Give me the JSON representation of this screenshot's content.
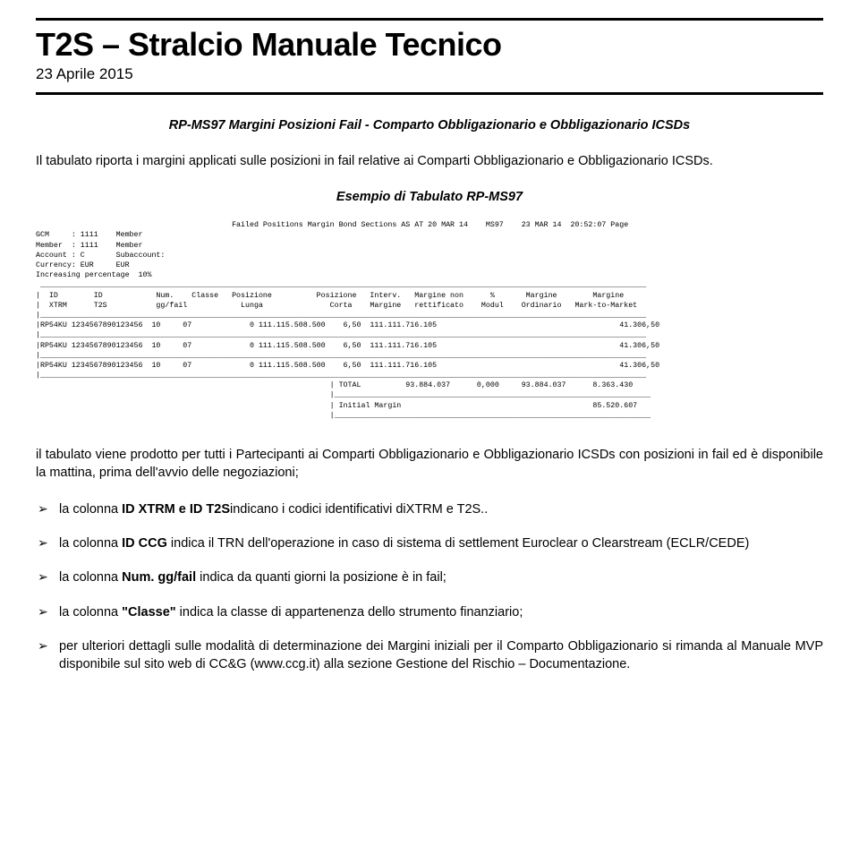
{
  "header": {
    "title": "T2S – Stralcio Manuale Tecnico",
    "date": "23 Aprile 2015"
  },
  "section_title": "RP-MS97 Margini Posizioni Fail - Comparto Obbligazionario e Obbligazionario ICSDs",
  "intro": "Il tabulato riporta i margini applicati sulle posizioni in fail relative ai Comparti Obbligazionario e Obbligazionario ICSDs.",
  "example_title": "Esempio di Tabulato RP-MS97",
  "mono": {
    "top_right": "Failed Positions Margin Bond Sections AS AT 20 MAR 14    MS97    23 MAR 14  20:52:07 Page",
    "meta": [
      "GCM     : 1111    Member",
      "Member  : 1111    Member",
      "Account : C       Subaccount:",
      "Currency: EUR     EUR",
      "Increasing percentage  10%"
    ],
    "sep": " ________________________________________________________________________________________________________________________________________",
    "head1": "|  ID        ID            Num.    Classe   Posizione          Posizione   Interv.   Margine non      %       Margine        Margine     ",
    "head2": "|  XTRM      T2S           gg/fail            Lunga               Corta    Margine   rettificato    Modul    Ordinario   Mark-to-Market ",
    "rowsep": "|________________________________________________________________________________________________________________________________________",
    "row": "|RP54KU 1234567890123456  10     07             0 111.115.508.500    6,50  111.111.716.105                                         41.306,50",
    "total": "                                                                  | TOTAL          93.884.037      0,000     93.884.037      8.363.430",
    "total_sep": "                                                                  |_______________________________________________________________________",
    "initial": "                                                                  | Initial Margin                                           85.520.607",
    "initial_sep": "                                                                  |_______________________________________________________________________"
  },
  "para_after": {
    "p1": "il tabulato viene prodotto per tutti i Partecipanti ai Comparti Obbligazionario e Obbligazionario ICSDs con posizioni in fail ed è disponibile la mattina, prima dell'avvio delle negoziazioni;"
  },
  "bullets": {
    "b1_a": "la colonna ",
    "b1_b": "ID XTRM  e ID T2S",
    "b1_c": "indicano i codici identificativi diXTRM e T2S..",
    "b2_a": "la colonna ",
    "b2_b": "ID CCG",
    "b2_c": " indica il TRN dell'operazione in caso di sistema di settlement Euroclear o Clearstream (ECLR/CEDE)",
    "b3_a": "la colonna ",
    "b3_b": "Num. gg/fail",
    "b3_c": " indica da quanti giorni la posizione è in fail;",
    "b4_a": "la colonna ",
    "b4_b": "Classe",
    "b4_c": " indica la classe di appartenenza dello strumento finanziario;",
    "b5": "per ulteriori dettagli sulle modalità di determinazione dei Margini iniziali per il Comparto Obbligazionario si rimanda al Manuale MVP disponibile sul sito web di CC&G (www.ccg.it) alla sezione Gestione del Rischio – Documentazione."
  }
}
